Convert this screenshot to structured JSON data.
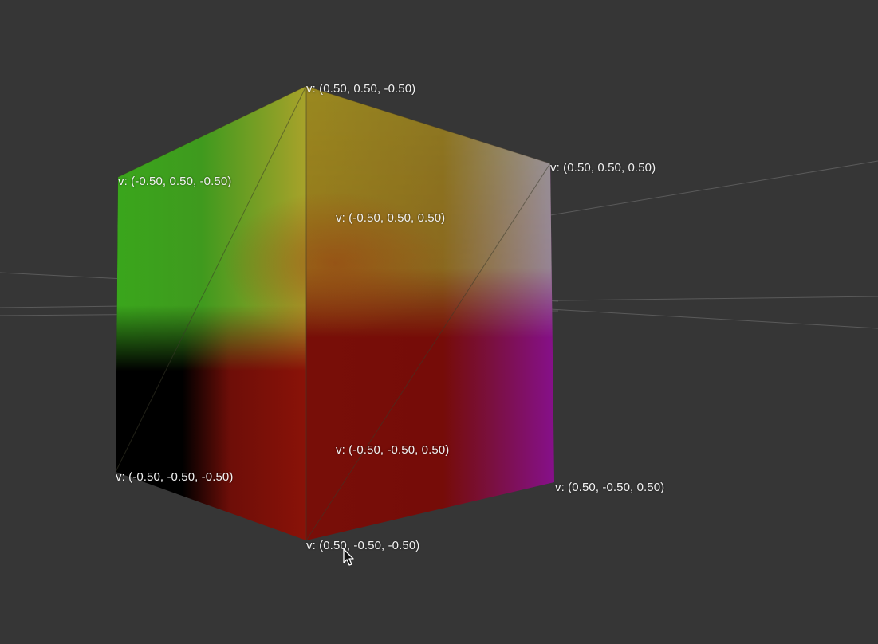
{
  "vertex_labels": {
    "back_top_left": "v: (-0.50, 0.50, -0.50)",
    "top_back": "v: (0.50, 0.50, -0.50)",
    "top_right": "v: (0.50, 0.50, 0.50)",
    "top_front": "v: (-0.50, 0.50, 0.50)",
    "bottom_left": "v: (-0.50, -0.50, -0.50)",
    "bottom_front_inner": "v: (-0.50, -0.50, 0.50)",
    "bottom_right": "v: (0.50, -0.50, 0.50)",
    "bottom_center": "v: (0.50, -0.50, -0.50)"
  },
  "colors": {
    "background": "#363636",
    "grid_line": "#6a6a6a",
    "wireframe": "#3a3a2a",
    "vertex_green": "#3aa61c",
    "vertex_yellow": "#a8a22a",
    "vertex_gray": "#9a9a9a",
    "vertex_black": "#000000",
    "vertex_red": "#8a1208",
    "vertex_magenta": "#86108a",
    "label_text": "#f2f2f2"
  },
  "icons": {
    "cursor": "mouse-pointer-icon"
  }
}
